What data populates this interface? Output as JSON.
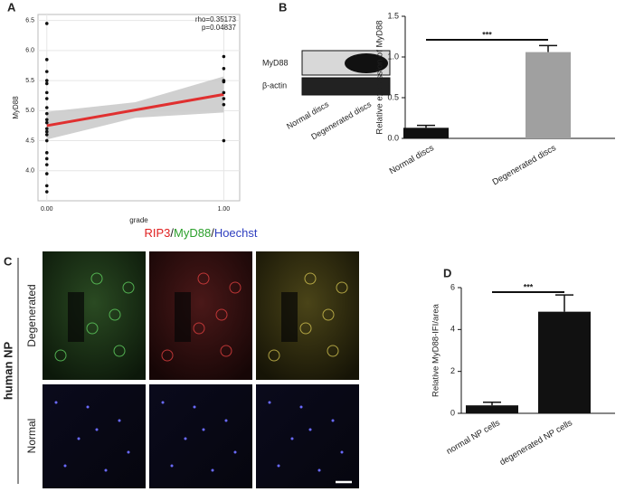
{
  "panel_labels": [
    "A",
    "B",
    "C",
    "D"
  ],
  "blot": {
    "bands": [
      "MyD88",
      "β-actin"
    ],
    "lanes": [
      "Normal discs",
      "Degenerated discs"
    ]
  },
  "microscopy": {
    "stain_title": [
      {
        "text": "RIP3",
        "color": "#e02020"
      },
      {
        "text": "/",
        "color": "#222222"
      },
      {
        "text": "MyD88",
        "color": "#2ca02c"
      },
      {
        "text": "/",
        "color": "#222222"
      },
      {
        "text": "Hoechst",
        "color": "#3040c0"
      }
    ],
    "tissue": "human NP",
    "rows": [
      "Degenerated",
      "Normal"
    ]
  },
  "chart_data": [
    {
      "type": "scatter",
      "xlabel": "grade",
      "ylabel": "MyD88",
      "annotations": [
        "rho=0.35173",
        "p=0.04837"
      ],
      "grid": true,
      "xlim": [
        -0.05,
        1.09
      ],
      "ylim": [
        3.5,
        6.6
      ],
      "xticks": [
        {
          "value": 0,
          "label": "0.00"
        },
        {
          "value": 1,
          "label": "1.00"
        }
      ],
      "yticks": [
        {
          "value": 4,
          "label": "4.0"
        },
        {
          "value": 4.5,
          "label": "4.5"
        },
        {
          "value": 5,
          "label": "5.0"
        },
        {
          "value": 5.5,
          "label": "5.5"
        },
        {
          "value": 6,
          "label": "6.0"
        },
        {
          "value": 6.5,
          "label": "6.5"
        }
      ],
      "series": [
        {
          "color": "#111111",
          "x": [
            0,
            0,
            0,
            0,
            0,
            0,
            0,
            0,
            0,
            0,
            0,
            0,
            0,
            0,
            0,
            0,
            0,
            0,
            0,
            0,
            0,
            1,
            1,
            1,
            1,
            1,
            1,
            1,
            1
          ],
          "values": [
            6.45,
            5.85,
            5.65,
            5.5,
            5.45,
            5.3,
            5.2,
            5.05,
            4.95,
            4.85,
            4.8,
            4.7,
            4.65,
            4.6,
            4.5,
            4.3,
            4.2,
            4.1,
            3.95,
            3.75,
            3.65,
            5.9,
            5.7,
            5.5,
            5.48,
            5.3,
            5.2,
            5.1,
            4.5
          ]
        }
      ],
      "fit": {
        "color": "#e03030",
        "band_color": "#c8c8c8",
        "x": [
          0,
          0.5,
          1
        ],
        "y": [
          4.75,
          5.01,
          5.27
        ],
        "lower": [
          4.52,
          4.88,
          4.97
        ],
        "upper": [
          4.98,
          5.14,
          5.57
        ]
      }
    },
    {
      "type": "bar",
      "ylabel": "Relative expression of MyD88",
      "significance": "***",
      "categories": [
        "Normal discs",
        "Degenerated discs"
      ],
      "values": [
        0.13,
        1.06
      ],
      "errors": [
        0.03,
        0.08
      ],
      "colors": [
        "#111111",
        "#a0a0a0"
      ],
      "ylim": [
        0,
        1.5
      ],
      "yticks": [
        {
          "value": 0,
          "label": "0.0"
        },
        {
          "value": 0.5,
          "label": "0.5"
        },
        {
          "value": 1,
          "label": "1.0"
        },
        {
          "value": 1.5,
          "label": "1.5"
        }
      ]
    },
    {
      "type": "bar",
      "ylabel": "Relative MyD88-IFI/area",
      "significance": "***",
      "categories": [
        "normal NP cells",
        "degenerated NP cells"
      ],
      "values": [
        0.38,
        4.85
      ],
      "errors": [
        0.15,
        0.8
      ],
      "colors": [
        "#111111",
        "#111111"
      ],
      "ylim": [
        0,
        6
      ],
      "yticks": [
        0,
        2,
        4,
        6
      ]
    }
  ]
}
